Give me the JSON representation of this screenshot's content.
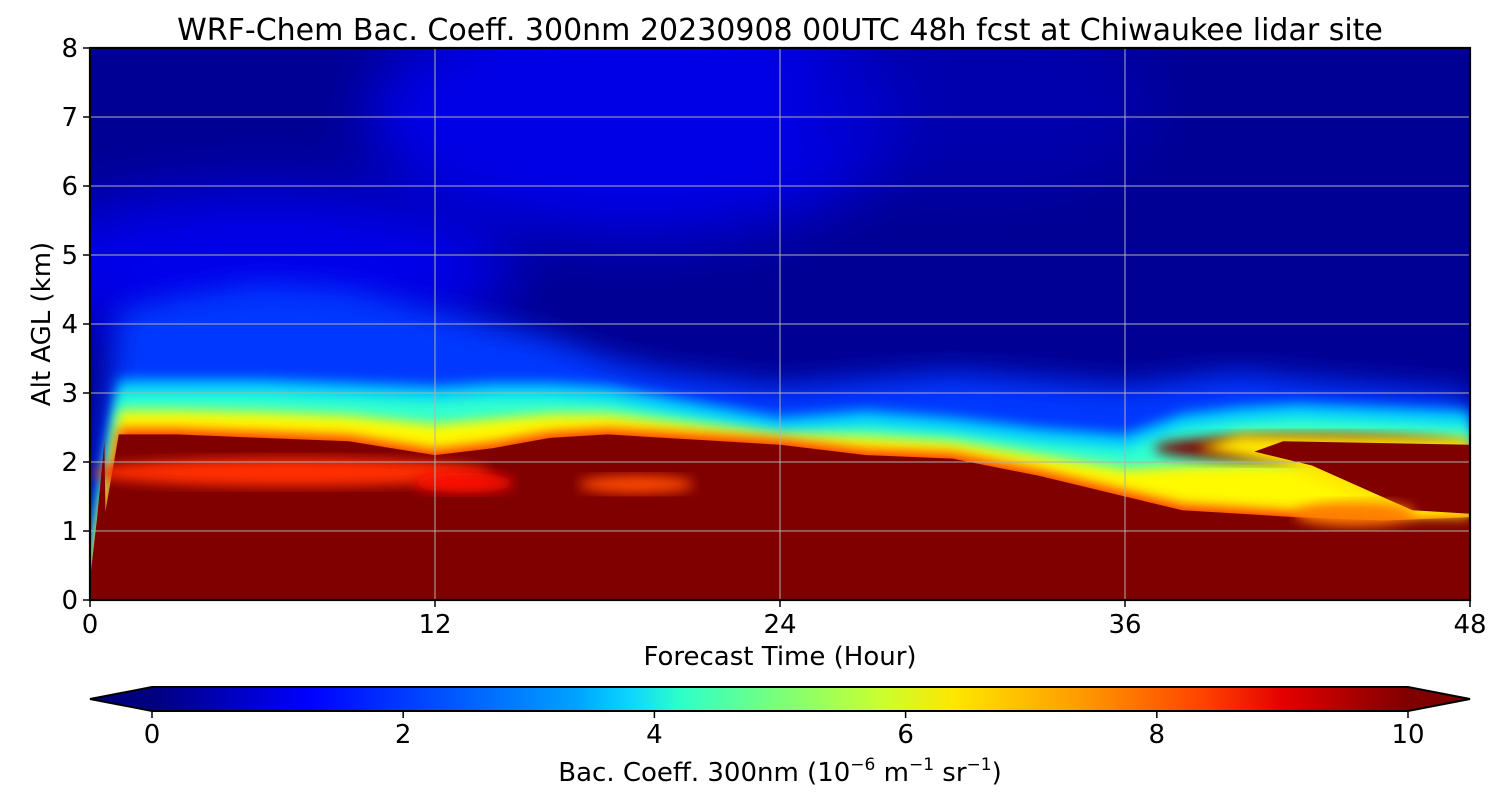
{
  "chart_data": {
    "type": "heatmap",
    "title": "WRF-Chem Bac. Coeff. 300nm  20230908 00UTC 48h fcst at Chiwaukee lidar site",
    "xlabel": "Forecast Time (Hour)",
    "ylabel": "Alt AGL (km)",
    "xlim": [
      0,
      48
    ],
    "ylim": [
      0,
      8
    ],
    "xticks": [
      0,
      12,
      24,
      36,
      48
    ],
    "yticks": [
      0,
      1,
      2,
      3,
      4,
      5,
      6,
      7,
      8
    ],
    "grid": true,
    "colormap": "jet",
    "colorbar": {
      "label_main": "Bac. Coeff. 300nm  (10",
      "label_exp1": "−6",
      "label_mid": " m",
      "label_exp2": "−1",
      "label_mid2": " sr",
      "label_exp3": "−1",
      "label_end": ")",
      "range": [
        0,
        10
      ],
      "ticks": [
        0,
        2,
        4,
        6,
        8,
        10
      ],
      "extend": "both",
      "orientation": "horizontal"
    },
    "field_description": "Backscatter coefficient vs forecast hour and altitude AGL",
    "layers": {
      "hours": [
        0,
        1,
        3,
        6,
        9,
        12,
        14,
        16,
        18,
        20,
        22,
        24,
        27,
        30,
        33,
        36,
        38,
        40,
        42,
        45,
        48
      ],
      "saturated_top_km": [
        0.0,
        2.4,
        2.4,
        2.35,
        2.3,
        2.1,
        2.2,
        2.35,
        2.4,
        2.35,
        2.3,
        2.25,
        2.1,
        2.05,
        1.8,
        1.5,
        1.3,
        1.25,
        1.2,
        1.15,
        1.2
      ],
      "transition_top_km": [
        0.5,
        3.0,
        3.0,
        3.0,
        2.95,
        2.9,
        2.95,
        2.95,
        2.9,
        2.75,
        2.6,
        2.45,
        2.55,
        2.45,
        2.3,
        2.2,
        2.5,
        2.6,
        2.65,
        2.6,
        2.55
      ],
      "elevated_blue_top_km": [
        1.0,
        4.2,
        4.4,
        4.6,
        4.5,
        4.2,
        4.0,
        3.8,
        3.5,
        3.3,
        3.2,
        3.1,
        3.2,
        3.3,
        3.2,
        3.1,
        3.2,
        3.3,
        3.2,
        3.1,
        3.0
      ]
    },
    "upper_layer_features": [
      {
        "hour_range": [
          37,
          48
        ],
        "altitude_range_km": [
          2.0,
          2.4
        ],
        "value": 10,
        "note": "elevated dark-red layer"
      },
      {
        "hour_range": [
          17,
          21
        ],
        "altitude_range_km": [
          1.55,
          1.8
        ],
        "value": 8,
        "note": "orange pocket inside saturated layer"
      }
    ]
  }
}
